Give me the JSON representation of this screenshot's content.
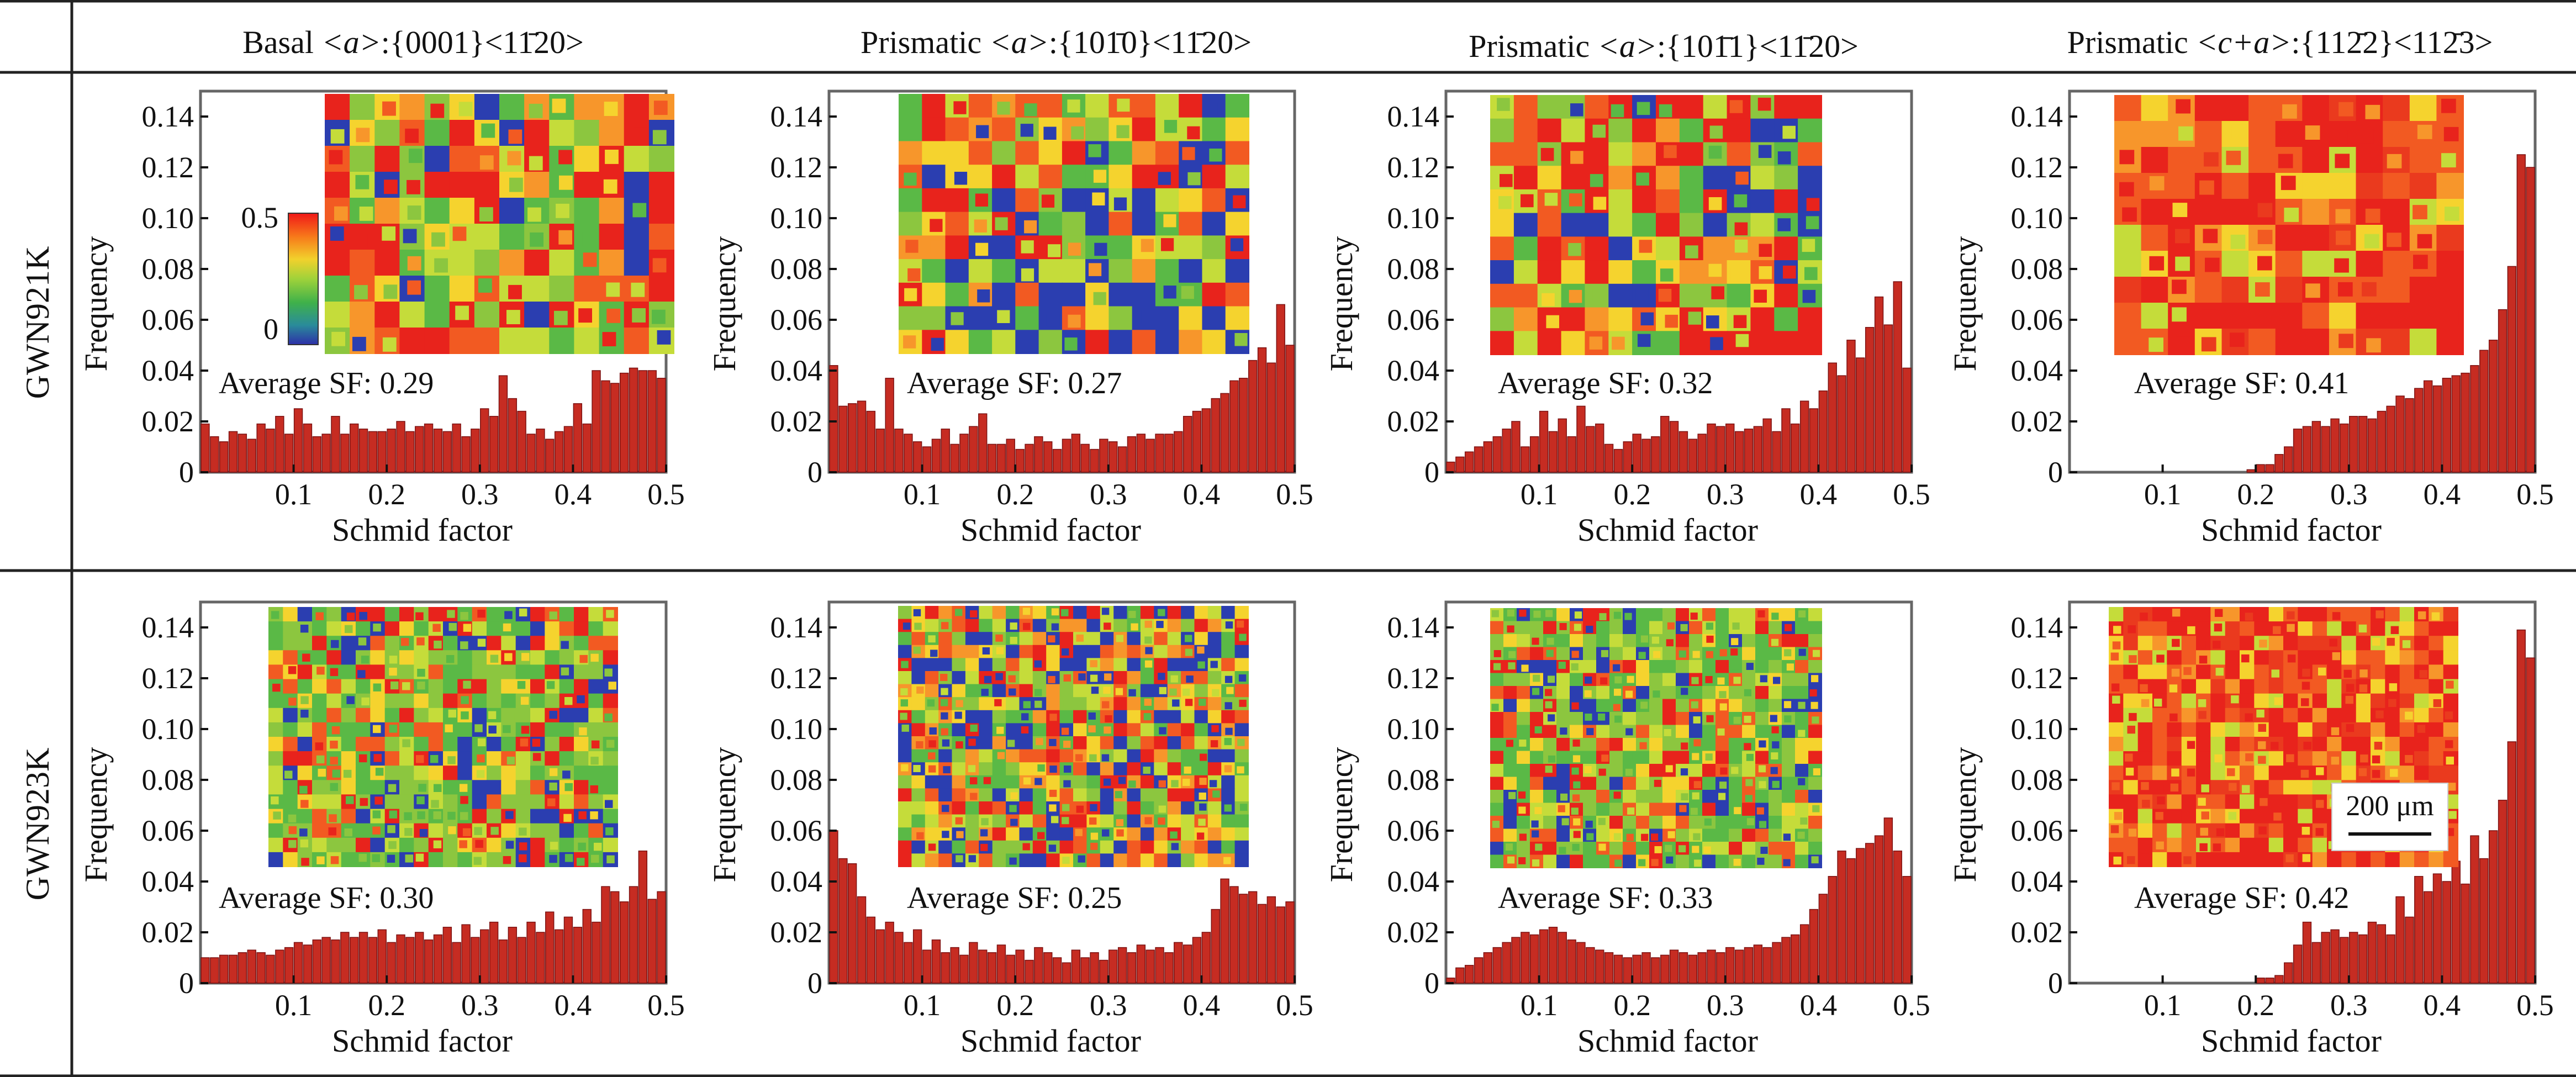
{
  "columns": [
    {
      "family": "Basal",
      "variant": "<a>",
      "planes": "{0001}",
      "direction": "<11̄20>"
    },
    {
      "family": "Prismatic",
      "variant": "<a>",
      "planes": "{101̄0}",
      "direction": "<11̄20>"
    },
    {
      "family": "Prismatic",
      "variant": "<a>",
      "planes": "{101̄1}",
      "direction": "<11̄20>"
    },
    {
      "family": "Prismatic",
      "variant": "<c+a>",
      "planes": "{112̄2}",
      "direction": "<112̄3>"
    }
  ],
  "rows": [
    "GWN921K",
    "GWN923K"
  ],
  "colorbar": {
    "max_label": "0.5",
    "min_label": "0",
    "colors": [
      "#f01818",
      "#f77a1a",
      "#f2d12c",
      "#9fd23a",
      "#3fb14a",
      "#2a8c9a",
      "#2d2fa8"
    ]
  },
  "scale_bar_label": "200 μm",
  "colors": {
    "bar": "#c62c22",
    "map_palette": [
      "#e8231c",
      "#f25a22",
      "#f7962b",
      "#f5d32e",
      "#c5dc3a",
      "#8cc63f",
      "#5ab946",
      "#2b3eb0"
    ]
  },
  "chart_data": [
    {
      "type": "bar",
      "row": "GWN921K",
      "column": 0,
      "xlabel": "Schmid factor",
      "ylabel": "Frequency",
      "ylim": [
        0,
        0.15
      ],
      "xlim": [
        0,
        0.5
      ],
      "xticks": [
        "0.1",
        "0.2",
        "0.3",
        "0.4",
        "0.5"
      ],
      "yticks": [
        "0",
        "0.02",
        "0.04",
        "0.06",
        "0.08",
        "0.10",
        "0.12",
        "0.14"
      ],
      "annotation": "Average SF: 0.29",
      "values": [
        0.019,
        0.014,
        0.012,
        0.016,
        0.015,
        0.013,
        0.019,
        0.017,
        0.022,
        0.015,
        0.025,
        0.019,
        0.014,
        0.015,
        0.022,
        0.015,
        0.019,
        0.017,
        0.016,
        0.016,
        0.017,
        0.02,
        0.016,
        0.018,
        0.019,
        0.017,
        0.016,
        0.019,
        0.014,
        0.017,
        0.025,
        0.022,
        0.038,
        0.029,
        0.024,
        0.015,
        0.017,
        0.013,
        0.016,
        0.018,
        0.027,
        0.019,
        0.04,
        0.036,
        0.035,
        0.039,
        0.041,
        0.04,
        0.04,
        0.037
      ]
    },
    {
      "type": "bar",
      "row": "GWN921K",
      "column": 1,
      "xlabel": "Schmid factor",
      "ylabel": "Frequency",
      "ylim": [
        0,
        0.15
      ],
      "xlim": [
        0,
        0.5
      ],
      "xticks": [
        "0.1",
        "0.2",
        "0.3",
        "0.4",
        "0.5"
      ],
      "yticks": [
        "0",
        "0.02",
        "0.04",
        "0.06",
        "0.08",
        "0.10",
        "0.12",
        "0.14"
      ],
      "annotation": "Average SF: 0.27",
      "values": [
        0.042,
        0.026,
        0.027,
        0.028,
        0.024,
        0.017,
        0.037,
        0.017,
        0.015,
        0.012,
        0.01,
        0.013,
        0.017,
        0.011,
        0.015,
        0.018,
        0.023,
        0.011,
        0.011,
        0.013,
        0.009,
        0.011,
        0.014,
        0.012,
        0.009,
        0.013,
        0.015,
        0.011,
        0.009,
        0.013,
        0.012,
        0.01,
        0.014,
        0.015,
        0.013,
        0.015,
        0.015,
        0.016,
        0.022,
        0.024,
        0.025,
        0.029,
        0.031,
        0.036,
        0.037,
        0.044,
        0.049,
        0.043,
        0.066,
        0.05
      ]
    },
    {
      "type": "bar",
      "row": "GWN921K",
      "column": 2,
      "xlabel": "Schmid factor",
      "ylabel": "Frequency",
      "ylim": [
        0,
        0.15
      ],
      "xlim": [
        0,
        0.5
      ],
      "xticks": [
        "0.1",
        "0.2",
        "0.3",
        "0.4",
        "0.5"
      ],
      "yticks": [
        "0",
        "0.02",
        "0.04",
        "0.06",
        "0.08",
        "0.10",
        "0.12",
        "0.14"
      ],
      "annotation": "Average SF: 0.32",
      "values": [
        0.004,
        0.006,
        0.008,
        0.01,
        0.012,
        0.014,
        0.017,
        0.02,
        0.01,
        0.014,
        0.024,
        0.016,
        0.021,
        0.014,
        0.026,
        0.018,
        0.019,
        0.011,
        0.009,
        0.012,
        0.015,
        0.013,
        0.014,
        0.022,
        0.02,
        0.016,
        0.013,
        0.015,
        0.019,
        0.018,
        0.019,
        0.016,
        0.017,
        0.018,
        0.021,
        0.016,
        0.025,
        0.019,
        0.028,
        0.025,
        0.032,
        0.043,
        0.038,
        0.052,
        0.045,
        0.057,
        0.069,
        0.058,
        0.075,
        0.041
      ]
    },
    {
      "type": "bar",
      "row": "GWN921K",
      "column": 3,
      "xlabel": "Schmid factor",
      "ylabel": "Frequency",
      "ylim": [
        0,
        0.15
      ],
      "xlim": [
        0,
        0.5
      ],
      "xticks": [
        "0.1",
        "0.2",
        "0.3",
        "0.4",
        "0.5"
      ],
      "yticks": [
        "0",
        "0.02",
        "0.04",
        "0.06",
        "0.08",
        "0.10",
        "0.12",
        "0.14"
      ],
      "annotation": "Average SF: 0.41",
      "values": [
        0,
        0,
        0,
        0,
        0,
        0,
        0,
        0,
        0,
        0,
        0,
        0,
        0,
        0,
        0,
        0,
        0,
        0,
        0,
        0.001,
        0.003,
        0.003,
        0.007,
        0.01,
        0.017,
        0.018,
        0.02,
        0.018,
        0.021,
        0.019,
        0.022,
        0.022,
        0.021,
        0.024,
        0.026,
        0.03,
        0.029,
        0.033,
        0.036,
        0.034,
        0.037,
        0.038,
        0.039,
        0.042,
        0.048,
        0.052,
        0.064,
        0.081,
        0.125,
        0.12
      ]
    },
    {
      "type": "bar",
      "row": "GWN923K",
      "column": 0,
      "xlabel": "Schmid factor",
      "ylabel": "Frequency",
      "ylim": [
        0,
        0.15
      ],
      "xlim": [
        0,
        0.5
      ],
      "xticks": [
        "0.1",
        "0.2",
        "0.3",
        "0.4",
        "0.5"
      ],
      "yticks": [
        "0",
        "0.02",
        "0.04",
        "0.06",
        "0.08",
        "0.10",
        "0.12",
        "0.14"
      ],
      "annotation": "Average SF: 0.30",
      "values": [
        0.01,
        0.01,
        0.011,
        0.011,
        0.012,
        0.013,
        0.012,
        0.011,
        0.013,
        0.014,
        0.016,
        0.015,
        0.017,
        0.018,
        0.017,
        0.02,
        0.018,
        0.02,
        0.018,
        0.021,
        0.016,
        0.019,
        0.018,
        0.02,
        0.017,
        0.019,
        0.022,
        0.016,
        0.023,
        0.018,
        0.021,
        0.024,
        0.017,
        0.022,
        0.018,
        0.024,
        0.02,
        0.028,
        0.021,
        0.026,
        0.022,
        0.029,
        0.024,
        0.038,
        0.036,
        0.032,
        0.038,
        0.052,
        0.033,
        0.036
      ]
    },
    {
      "type": "bar",
      "row": "GWN923K",
      "column": 1,
      "xlabel": "Schmid factor",
      "ylabel": "Frequency",
      "ylim": [
        0,
        0.15
      ],
      "xlim": [
        0,
        0.5
      ],
      "xticks": [
        "0.1",
        "0.2",
        "0.3",
        "0.4",
        "0.5"
      ],
      "yticks": [
        "0",
        "0.02",
        "0.04",
        "0.06",
        "0.08",
        "0.10",
        "0.12",
        "0.14"
      ],
      "annotation": "Average SF: 0.25",
      "values": [
        0.06,
        0.049,
        0.047,
        0.034,
        0.026,
        0.021,
        0.024,
        0.02,
        0.016,
        0.021,
        0.013,
        0.017,
        0.012,
        0.014,
        0.011,
        0.016,
        0.013,
        0.012,
        0.015,
        0.011,
        0.013,
        0.009,
        0.014,
        0.012,
        0.01,
        0.008,
        0.013,
        0.01,
        0.012,
        0.009,
        0.013,
        0.014,
        0.012,
        0.015,
        0.013,
        0.014,
        0.012,
        0.016,
        0.015,
        0.018,
        0.02,
        0.029,
        0.041,
        0.038,
        0.035,
        0.036,
        0.031,
        0.034,
        0.03,
        0.032
      ]
    },
    {
      "type": "bar",
      "row": "GWN923K",
      "column": 2,
      "xlabel": "Schmid factor",
      "ylabel": "Frequency",
      "ylim": [
        0,
        0.15
      ],
      "xlim": [
        0,
        0.5
      ],
      "xticks": [
        "0.1",
        "0.2",
        "0.3",
        "0.4",
        "0.5"
      ],
      "yticks": [
        "0",
        "0.02",
        "0.04",
        "0.06",
        "0.08",
        "0.10",
        "0.12",
        "0.14"
      ],
      "annotation": "Average SF: 0.33",
      "values": [
        0.002,
        0.006,
        0.007,
        0.01,
        0.012,
        0.014,
        0.016,
        0.018,
        0.02,
        0.019,
        0.021,
        0.022,
        0.02,
        0.017,
        0.016,
        0.014,
        0.013,
        0.012,
        0.011,
        0.01,
        0.011,
        0.012,
        0.01,
        0.011,
        0.013,
        0.012,
        0.011,
        0.012,
        0.013,
        0.012,
        0.014,
        0.013,
        0.014,
        0.015,
        0.014,
        0.016,
        0.018,
        0.019,
        0.023,
        0.029,
        0.035,
        0.042,
        0.052,
        0.049,
        0.053,
        0.055,
        0.058,
        0.065,
        0.052,
        0.042
      ]
    },
    {
      "type": "bar",
      "row": "GWN923K",
      "column": 3,
      "xlabel": "Schmid factor",
      "ylabel": "Frequency",
      "ylim": [
        0,
        0.15
      ],
      "xlim": [
        0,
        0.5
      ],
      "xticks": [
        "0.1",
        "0.2",
        "0.3",
        "0.4",
        "0.5"
      ],
      "yticks": [
        "0",
        "0.02",
        "0.04",
        "0.06",
        "0.08",
        "0.10",
        "0.12",
        "0.14"
      ],
      "annotation": "Average SF: 0.42",
      "values": [
        0,
        0,
        0,
        0,
        0,
        0,
        0,
        0,
        0,
        0,
        0,
        0,
        0,
        0,
        0,
        0,
        0,
        0,
        0,
        0,
        0.002,
        0.002,
        0.003,
        0.008,
        0.015,
        0.024,
        0.016,
        0.02,
        0.021,
        0.018,
        0.02,
        0.019,
        0.024,
        0.023,
        0.019,
        0.034,
        0.026,
        0.042,
        0.036,
        0.043,
        0.04,
        0.048,
        0.039,
        0.058,
        0.049,
        0.06,
        0.072,
        0.095,
        0.139,
        0.128
      ]
    }
  ]
}
